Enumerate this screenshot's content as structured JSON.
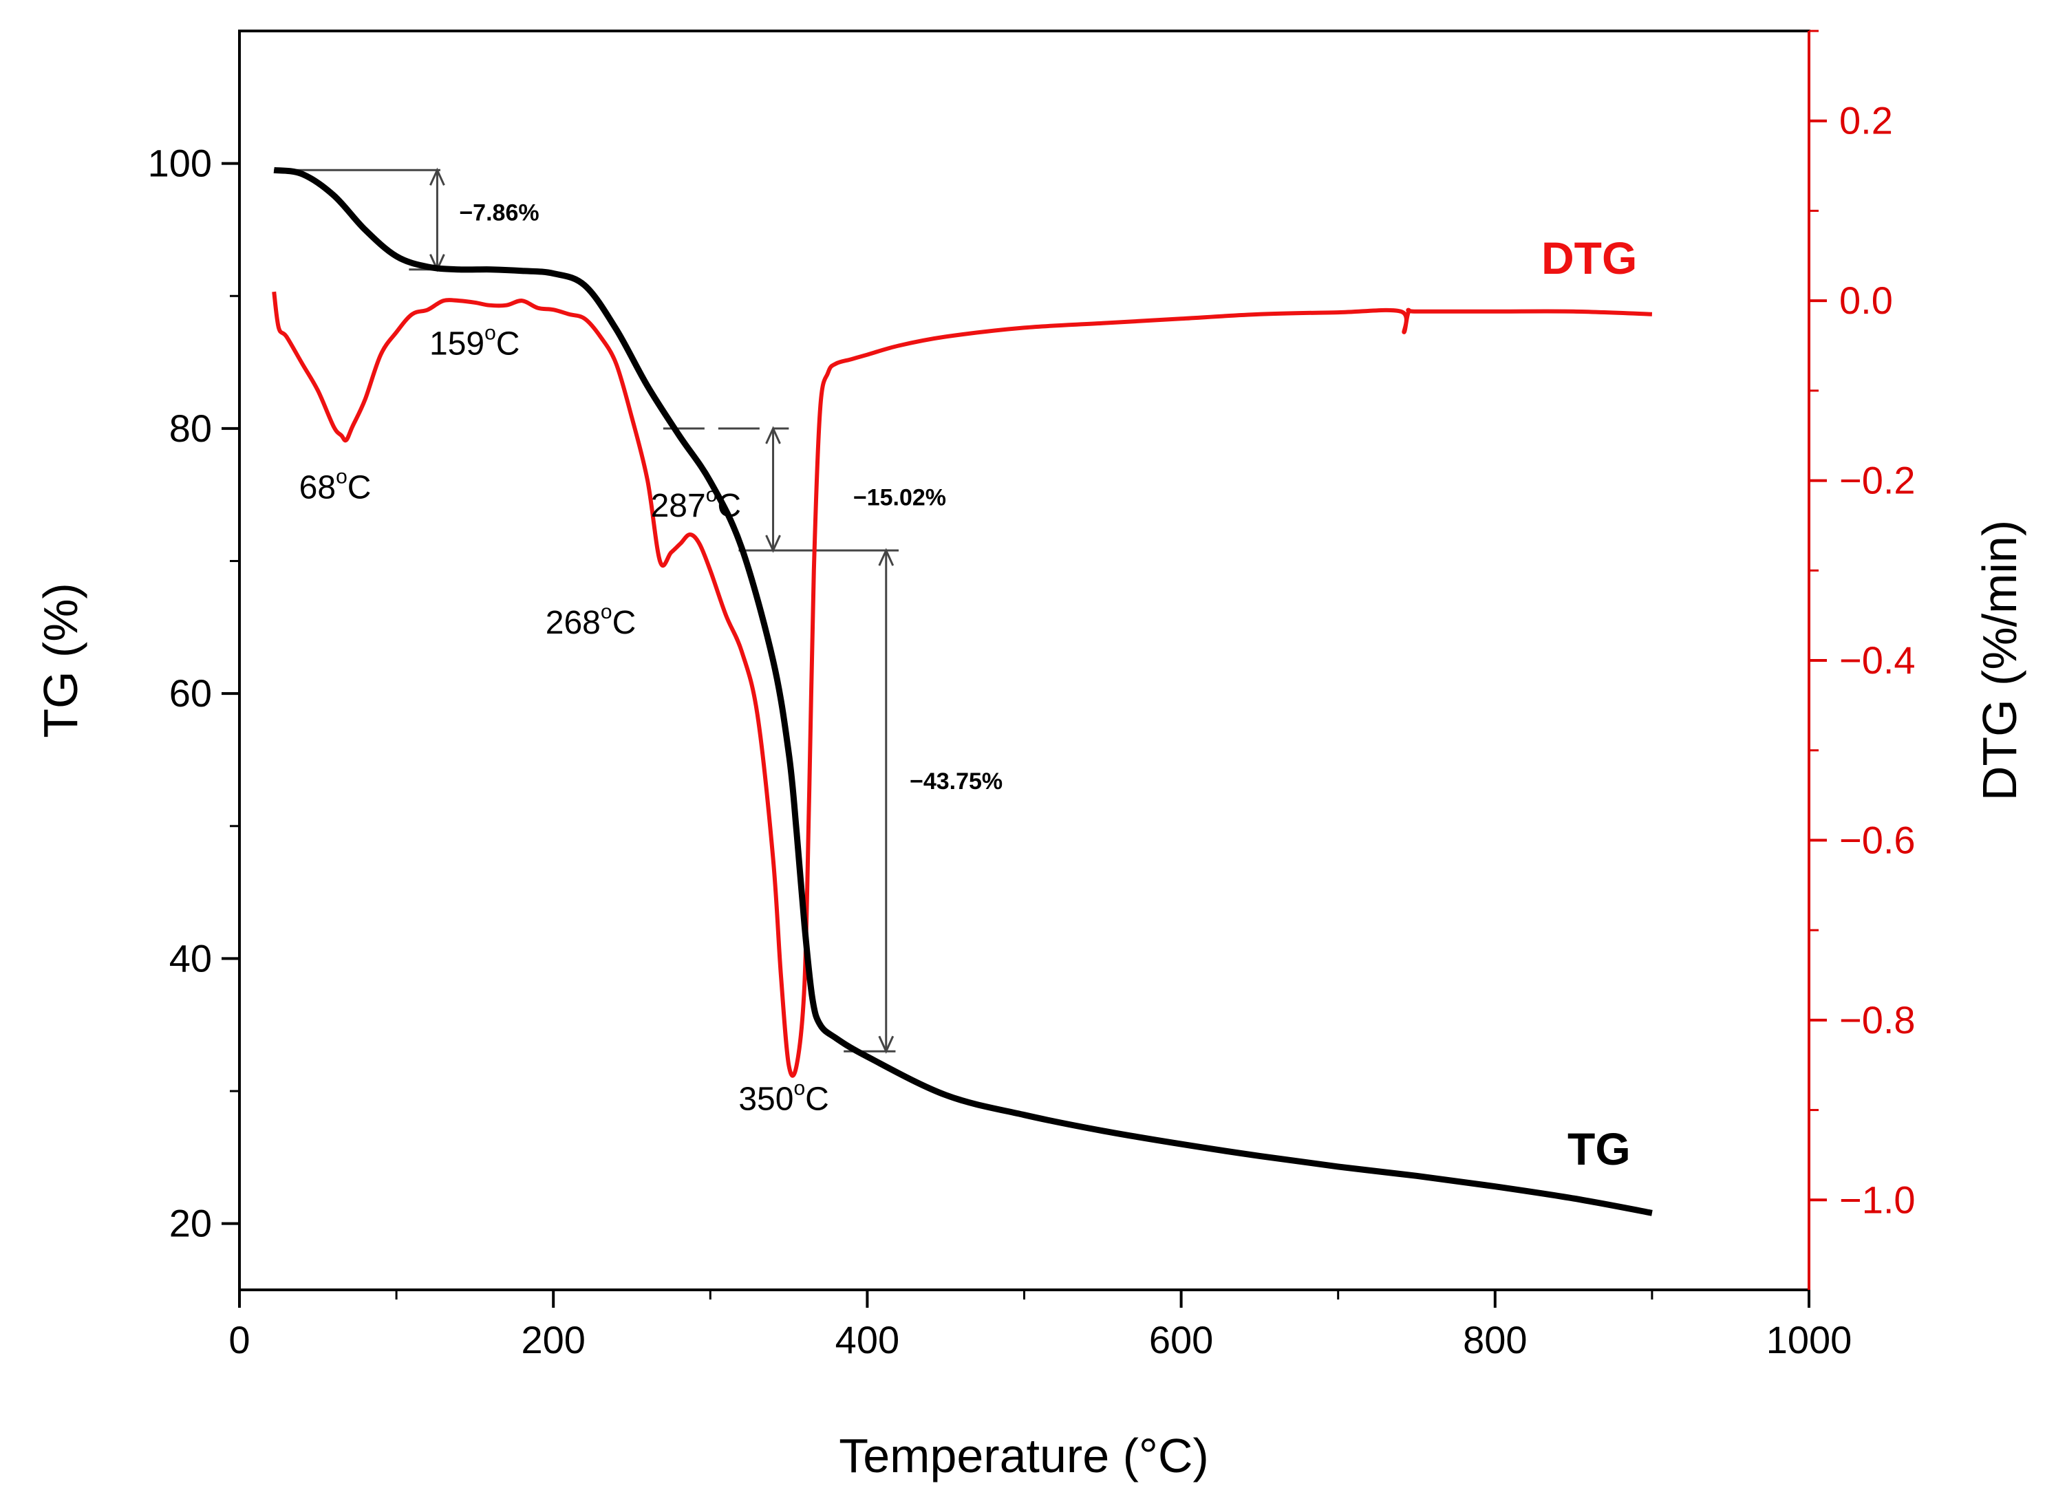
{
  "chart_data": {
    "type": "line",
    "xlabel": "Temperature (°C)",
    "ylabel_left": "TG (%)",
    "ylabel_right": "DTG (%/min)",
    "xlim": [
      0,
      1000
    ],
    "ylim_left": [
      15,
      110
    ],
    "ylim_right": [
      -1.1,
      0.3
    ],
    "x_ticks": [
      "0",
      "200",
      "400",
      "600",
      "800",
      "1000"
    ],
    "y_left_ticks": [
      "20",
      "40",
      "60",
      "80",
      "100"
    ],
    "y_right_ticks": [
      "0.2",
      "0.0",
      "−0.2",
      "−0.4",
      "−0.6",
      "−0.8",
      "−1.0"
    ],
    "grid": false,
    "colors": {
      "tg": "#000000",
      "dtg": "#ee1111",
      "annotation": "#444444",
      "right_axis": "#dd0000"
    },
    "series": [
      {
        "name": "TG",
        "axis": "left",
        "x": [
          22,
          40,
          60,
          80,
          100,
          120,
          140,
          160,
          180,
          200,
          220,
          240,
          260,
          280,
          300,
          320,
          340,
          350,
          355,
          360,
          365,
          370,
          380,
          400,
          450,
          500,
          550,
          600,
          650,
          700,
          750,
          800,
          850,
          900
        ],
        "y": [
          99.5,
          99.2,
          97.6,
          95.0,
          93.0,
          92.2,
          92.0,
          92.0,
          91.9,
          91.7,
          90.8,
          87.5,
          83.2,
          79.5,
          76.0,
          71.0,
          62.5,
          55.5,
          49.5,
          42.5,
          37.0,
          35.0,
          34.0,
          32.6,
          29.7,
          28.2,
          27.0,
          26.0,
          25.1,
          24.3,
          23.6,
          22.8,
          21.9,
          20.8
        ]
      },
      {
        "name": "DTG",
        "axis": "right",
        "x": [
          22,
          25,
          30,
          40,
          50,
          60,
          65,
          68,
          72,
          80,
          90,
          100,
          110,
          120,
          130,
          140,
          150,
          159,
          170,
          180,
          190,
          200,
          210,
          220,
          230,
          240,
          250,
          260,
          268,
          275,
          281,
          287,
          293,
          300,
          310,
          320,
          330,
          340,
          345,
          350,
          355,
          360,
          363,
          366,
          370,
          375,
          380,
          390,
          400,
          420,
          450,
          500,
          550,
          600,
          650,
          700,
          740,
          742,
          745,
          750,
          800,
          850,
          900
        ],
        "y": [
          0.01,
          -0.03,
          -0.04,
          -0.07,
          -0.1,
          -0.14,
          -0.15,
          -0.155,
          -0.14,
          -0.11,
          -0.06,
          -0.035,
          -0.015,
          -0.01,
          0.0,
          0.0,
          -0.002,
          -0.005,
          -0.005,
          0.0,
          -0.008,
          -0.01,
          -0.015,
          -0.02,
          -0.04,
          -0.07,
          -0.13,
          -0.2,
          -0.29,
          -0.28,
          -0.27,
          -0.26,
          -0.27,
          -0.3,
          -0.35,
          -0.39,
          -0.46,
          -0.62,
          -0.75,
          -0.85,
          -0.85,
          -0.76,
          -0.55,
          -0.3,
          -0.12,
          -0.08,
          -0.07,
          -0.065,
          -0.06,
          -0.05,
          -0.04,
          -0.03,
          -0.025,
          -0.02,
          -0.015,
          -0.013,
          -0.012,
          -0.035,
          -0.012,
          -0.012,
          -0.012,
          -0.012,
          -0.015
        ]
      }
    ],
    "annotations": {
      "peaks": [
        {
          "label_pre": "68",
          "label_post": "C",
          "x": 68,
          "y_right": -0.155
        },
        {
          "label_pre": "159",
          "label_post": "C",
          "x": 159,
          "y_right": -0.005
        },
        {
          "label_pre": "268",
          "label_post": "C",
          "x": 268,
          "y_right": -0.29
        },
        {
          "label_pre": "287",
          "label_post": "C",
          "x": 287,
          "y_right": -0.26
        },
        {
          "label_pre": "350",
          "label_post": "C",
          "x": 350,
          "y_right": -0.85
        }
      ],
      "steps": [
        {
          "label": "−7.86%",
          "from_tg": 99.5,
          "to_tg": 92.0
        },
        {
          "label": "−15.02%",
          "from_tg": 80.0,
          "to_tg": 70.8
        },
        {
          "label": "−43.75%",
          "from_tg": 70.8,
          "to_tg": 33.0
        }
      ],
      "degree_symbol": "o"
    },
    "series_tags": {
      "dtg": "DTG",
      "tg": "TG"
    }
  }
}
